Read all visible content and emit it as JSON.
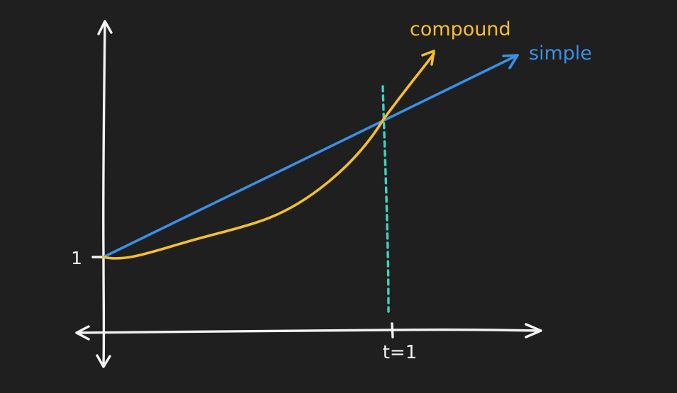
{
  "chart_data": {
    "type": "line",
    "title": "",
    "xlabel": "",
    "ylabel": "",
    "y_tick_labels": [
      "1"
    ],
    "x_tick_labels": [
      "t=1"
    ],
    "series": [
      {
        "name": "compound",
        "color": "#f5be2c"
      },
      {
        "name": "simple",
        "color": "#3b8fe6"
      }
    ],
    "reference_line_color": "#3fd2c2",
    "axis_color": "#f2f2f2",
    "background": "#1f1f1f",
    "grid": false
  }
}
